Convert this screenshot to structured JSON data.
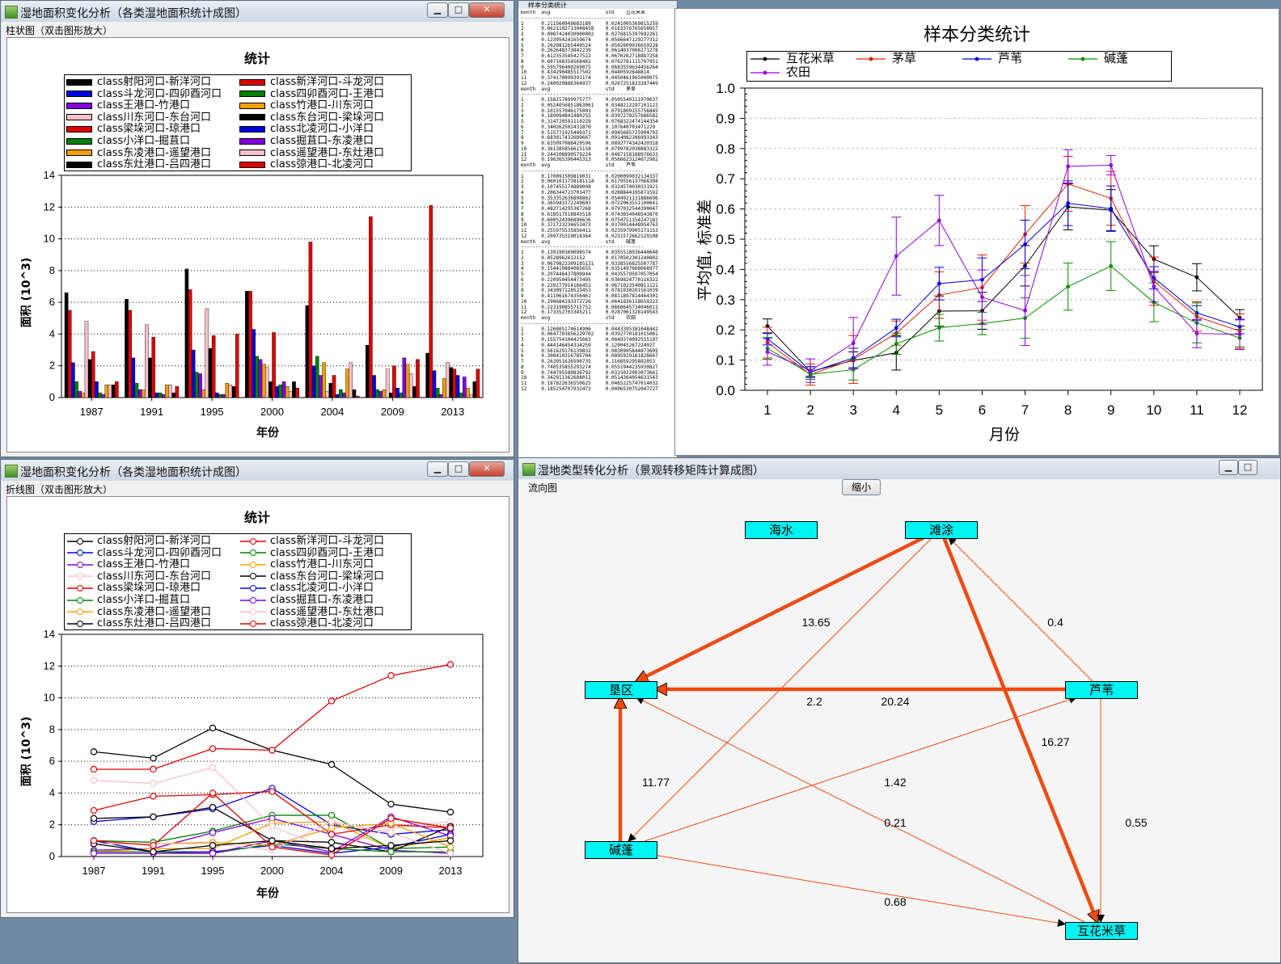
{
  "window_top_left": {
    "title": "湿地面积变化分析（各类湿地面积统计成图）",
    "menu": "柱状图（双击图形放大）",
    "chart_title": "统计",
    "controls": {
      "minimize": "▁",
      "maximize": "□",
      "close": "✕"
    }
  },
  "window_bottom_left": {
    "title": "湿地面积变化分析（各类湿地面积统计成图）",
    "menu": "折线图（双击图形放大）",
    "chart_title": "统计",
    "controls": {
      "minimize": "▁",
      "maximize": "□",
      "close": "✕"
    }
  },
  "text_window": {
    "title": "样本分类统计",
    "lines": [
      "month  avg                   std    互花米草",
      "------------------------------------------",
      "1      0.211560949683189     0.0241005369815259",
      "2      0.0621102713048458    0.0163376765658957",
      "3      0.0987424030900002    0.0276815397692261",
      "4      0.123954241659674     0.0566647129277312",
      "5      0.262081265449524     0.0502609036659228",
      "6      0.262648373842239     0.0614037006271278",
      "7      0.412353545427522     0.0670262718887258",
      "8      0.607108354568481     0.0762781115707951",
      "9      0.595796400269075     0.0683559634456264",
      "10     0.434290485517502     0.0440592648814",
      "11     0.374170899391174     0.0450461965000075",
      "12     0.240029886364937     0.0267251823287449",
      "month  avg                   std    茅草",
      "------------------------------------------",
      "1      0.158157899975777     0.0505549111970637",
      "2      0.0524056851863061    0.0348212297101122",
      "3      0.101557046175003     0.0791809155756845",
      "4      0.189094841480255     0.0397278257686582",
      "5      0.314720591110229     0.0768322474144354",
      "6      0.340262502431870     0.107640703471229",
      "7      0.515771925449371     0.0945685725904793",
      "8      0.683017432689667     0.0914082306993343",
      "9      0.635097086429596     0.0892774342420318",
      "10     0.361385856615158     0.0799782038883322",
      "11     0.244108890579224     0.0487158188976633",
      "12     0.196365396445313     0.0566623124672982",
      "month  avg                   std    芦苇",
      "------------------------------------------",
      "1      0.170091509819031     0.0200099032134337",
      "2      0.0601011738181114    0.0179556137068308",
      "3      0.107455174889008     0.0324574030331921",
      "4      0.206344723701477     0.0288844195871592",
      "5      0.353352636898862     0.0544921131886696",
      "6      0.365943372249603     0.0722063551100641",
      "7      0.482714295387268     0.0797032544390047",
      "8      0.618517518843518     0.0743654948543870",
      "9      0.600524396896636     0.0754751154247181",
      "10     0.371723234653473     0.0370014448954763",
      "11     0.255975535856411     0.0235979905171153",
      "12     0.209735319018364     0.0231572662129108",
      "month  avg                   std    碱蓬",
      "------------------------------------------",
      "1      0.139190360098574     0.0355518936440648",
      "2      0.0528962612152       0.0170502301240802",
      "3      0.0679823309185131    0.0338556825507787",
      "4      0.154419884085655     0.0351497668068977",
      "5      0.207446437809944     0.0435579507057054",
      "6      0.220950454473495     0.0369824770116322",
      "7      0.239277914166451     0.0671023540811121",
      "8      0.343097128523453     0.0781930201561039",
      "9      0.411061674356461     0.0811897814464301",
      "10     0.290684193372726     0.0641836118659223",
      "11     0.223190855715752     0.0660645734046011",
      "12     0.173352703345211     0.0287061328149543",
      "month  avg                   std    农田",
      "------------------------------------------",
      "1      0.126805174614906     0.0443395381048442",
      "2      0.0647703856229702    0.0392770181015081",
      "3      0.155754104425663     0.0849374092555197",
      "4      0.444146454334259     0.129045267224927",
      "5      0.561629176139832     0.0830905844873605",
      "6      0.308410316785704     0.0895929161828667",
      "7      0.263951626590735     0.116059295892053",
      "8      0.740535855293274     0.0551944235930827",
      "9      0.744795580836792     0.0315022003073661",
      "10     0.342911362688011     0.0514364054631543",
      "11     0.187822636550625     0.0465225747014032",
      "12     0.185254707932472     0.0496530752047727"
    ]
  },
  "window_bottom_right": {
    "title": "湿地类型转化分析（景观转移矩阵计算成图）",
    "menu": "流向图",
    "shrink_button": "缩小",
    "controls": {
      "minimize": "▁",
      "maximize": "□"
    }
  },
  "legend_items": [
    {
      "name": "class射阳河口-新洋河口",
      "color": "#000000"
    },
    {
      "name": "class新洋河口-斗龙河口",
      "color": "#e00000"
    },
    {
      "name": "class斗龙河口-四卯酉河口",
      "color": "#0000e0"
    },
    {
      "name": "class四卯酉河口-王港口",
      "color": "#008000"
    },
    {
      "name": "class王港口-竹港口",
      "color": "#8000e0"
    },
    {
      "name": "class竹港口-川东河口",
      "color": "#f0a000"
    },
    {
      "name": "class川东河口-东台河口",
      "color": "#f7c0c8"
    },
    {
      "name": "class东台河口-梁垛河口",
      "color": "#000000"
    },
    {
      "name": "class梁垛河口-琼港口",
      "color": "#e00000"
    },
    {
      "name": "class北凌河口-小洋口",
      "color": "#0000e0"
    },
    {
      "name": "class小洋口-掘苴口",
      "color": "#008000"
    },
    {
      "name": "class掘苴口-东凌港口",
      "color": "#8000e0"
    },
    {
      "name": "class东凌港口-遥望港口",
      "color": "#f0a000"
    },
    {
      "name": "class遥望港口-东灶港口",
      "color": "#f7c0c8"
    },
    {
      "name": "class东灶港口-吕四港口",
      "color": "#000000"
    },
    {
      "name": "class弶港口-北凌河口",
      "color": "#e00000"
    }
  ],
  "area_axes": {
    "xlabel": "年份",
    "ylabel": "面积 (10^3)",
    "ymax": 14,
    "yticks": [
      0,
      2,
      4,
      6,
      8,
      10,
      12,
      14
    ]
  },
  "chart_data": [
    {
      "type": "bar",
      "title": "统计",
      "xlabel": "年份",
      "ylabel": "面积 (10^3)",
      "ylim": [
        0,
        14
      ],
      "categories": [
        "1987",
        "1991",
        "1995",
        "2000",
        "2004",
        "2009",
        "2013"
      ],
      "series": [
        {
          "name": "class射阳河口-新洋河口",
          "values": [
            6.6,
            6.2,
            8.1,
            6.7,
            5.8,
            3.3,
            2.8
          ]
        },
        {
          "name": "class新洋河口-斗龙河口",
          "values": [
            5.5,
            5.5,
            6.8,
            6.7,
            9.8,
            11.4,
            12.1
          ]
        },
        {
          "name": "class斗龙河口-四卯酉河口",
          "values": [
            2.2,
            2.5,
            3.0,
            4.3,
            2.0,
            1.4,
            1.7
          ]
        },
        {
          "name": "class四卯酉河口-王港口",
          "values": [
            1.0,
            0.9,
            1.6,
            2.6,
            2.6,
            0.5,
            0.6
          ]
        },
        {
          "name": "class王港口-竹港口",
          "values": [
            0.4,
            0.5,
            1.5,
            2.4,
            1.4,
            0.4,
            0.2
          ]
        },
        {
          "name": "class竹港口-川东河口",
          "values": [
            0.3,
            0.5,
            0.5,
            2.1,
            2.2,
            0.5,
            1.2
          ]
        },
        {
          "name": "class川东河口-东台河口",
          "values": [
            4.8,
            4.6,
            5.6,
            1.9,
            0.4,
            1.8,
            2.2
          ]
        },
        {
          "name": "class东台河口-梁垛河口",
          "values": [
            2.4,
            2.5,
            3.1,
            1.0,
            0.9,
            0.3,
            1.9
          ]
        },
        {
          "name": "class梁垛河口-琼港口",
          "values": [
            2.9,
            3.8,
            3.9,
            4.1,
            1.4,
            2.0,
            1.8
          ]
        },
        {
          "name": "class北凌河口-小洋口",
          "values": [
            1.0,
            0.3,
            0.3,
            0.7,
            0.2,
            0.6,
            1.4
          ]
        },
        {
          "name": "class小洋口-掘苴口",
          "values": [
            0.3,
            0.3,
            0.2,
            0.8,
            0.5,
            0.3,
            0.3
          ]
        },
        {
          "name": "class掘苴口-东凌港口",
          "values": [
            0.2,
            0.2,
            0.2,
            1.0,
            0.3,
            2.5,
            1.3
          ]
        },
        {
          "name": "class东凌港口-遥望港口",
          "values": [
            0.8,
            0.8,
            0.9,
            0.7,
            1.8,
            2.1,
            0.6
          ]
        },
        {
          "name": "class遥望港口-东灶港口",
          "values": [
            0.8,
            0.8,
            0.8,
            0.4,
            2.2,
            1.5,
            0.2
          ]
        },
        {
          "name": "class东灶港口-吕四港口",
          "values": [
            0.8,
            0.3,
            0.7,
            1.0,
            0.5,
            0.7,
            1.0
          ]
        },
        {
          "name": "class弶港口-北凌河口",
          "values": [
            1.0,
            0.7,
            4.0,
            0.6,
            0.1,
            2.4,
            1.8
          ]
        }
      ]
    },
    {
      "type": "line",
      "title": "统计",
      "xlabel": "年份",
      "ylabel": "面积 (10^3)",
      "ylim": [
        0,
        14
      ],
      "x": [
        "1987",
        "1991",
        "1995",
        "2000",
        "2004",
        "2009",
        "2013"
      ],
      "series": [
        {
          "name": "class射阳河口-新洋河口",
          "values": [
            6.6,
            6.2,
            8.1,
            6.7,
            5.8,
            3.3,
            2.8
          ]
        },
        {
          "name": "class新洋河口-斗龙河口",
          "values": [
            5.5,
            5.5,
            6.8,
            6.7,
            9.8,
            11.4,
            12.1
          ]
        },
        {
          "name": "class斗龙河口-四卯酉河口",
          "values": [
            2.2,
            2.5,
            3.0,
            4.3,
            2.0,
            1.4,
            1.7
          ]
        },
        {
          "name": "class四卯酉河口-王港口",
          "values": [
            1.0,
            0.9,
            1.6,
            2.6,
            2.6,
            0.5,
            0.6
          ]
        },
        {
          "name": "class王港口-竹港口",
          "values": [
            0.4,
            0.5,
            1.5,
            2.4,
            1.4,
            0.4,
            0.2
          ]
        },
        {
          "name": "class竹港口-川东河口",
          "values": [
            0.3,
            0.5,
            0.5,
            2.1,
            2.2,
            0.5,
            1.2
          ]
        },
        {
          "name": "class川东河口-东台河口",
          "values": [
            4.8,
            4.6,
            5.6,
            1.9,
            0.4,
            1.8,
            2.2
          ]
        },
        {
          "name": "class东台河口-梁垛河口",
          "values": [
            2.4,
            2.5,
            3.1,
            1.0,
            0.9,
            0.3,
            1.9
          ]
        },
        {
          "name": "class梁垛河口-琼港口",
          "values": [
            2.9,
            3.8,
            3.9,
            4.1,
            1.4,
            2.0,
            1.8
          ]
        },
        {
          "name": "class北凌河口-小洋口",
          "values": [
            1.0,
            0.3,
            0.3,
            0.7,
            0.2,
            0.6,
            1.4
          ]
        },
        {
          "name": "class小洋口-掘苴口",
          "values": [
            0.3,
            0.3,
            0.2,
            0.8,
            0.5,
            0.3,
            0.3
          ]
        },
        {
          "name": "class掘苴口-东凌港口",
          "values": [
            0.2,
            0.2,
            0.2,
            1.0,
            0.3,
            2.5,
            1.3
          ]
        },
        {
          "name": "class东凌港口-遥望港口",
          "values": [
            0.8,
            0.8,
            0.9,
            0.7,
            1.8,
            2.1,
            0.6
          ]
        },
        {
          "name": "class遥望港口-东灶港口",
          "values": [
            0.8,
            0.8,
            0.8,
            0.4,
            2.2,
            1.5,
            0.2
          ]
        },
        {
          "name": "class东灶港口-吕四港口",
          "values": [
            0.8,
            0.3,
            0.7,
            1.0,
            0.5,
            0.7,
            1.0
          ]
        },
        {
          "name": "class弶港口-北凌河口",
          "values": [
            1.0,
            0.7,
            4.0,
            0.6,
            0.1,
            2.4,
            1.8
          ]
        }
      ]
    },
    {
      "type": "line",
      "title": "样本分类统计",
      "xlabel": "月份",
      "ylabel": "平均值, 标准差",
      "ylim": [
        0,
        1.0
      ],
      "yticks": [
        "0.0",
        "0.1",
        "0.2",
        "0.3",
        "0.4",
        "0.5",
        "0.6",
        "0.7",
        "0.8",
        "0.9",
        "1.0"
      ],
      "x": [
        1,
        2,
        3,
        4,
        5,
        6,
        7,
        8,
        9,
        10,
        11,
        12
      ],
      "series": [
        {
          "name": "互花米草",
          "color": "#000000",
          "values": [
            0.212,
            0.062,
            0.099,
            0.124,
            0.262,
            0.263,
            0.412,
            0.607,
            0.596,
            0.434,
            0.374,
            0.24
          ],
          "std": [
            0.024,
            0.016,
            0.028,
            0.057,
            0.05,
            0.061,
            0.067,
            0.076,
            0.068,
            0.044,
            0.045,
            0.027
          ]
        },
        {
          "name": "茅草",
          "color": "#e02000",
          "values": [
            0.158,
            0.052,
            0.102,
            0.189,
            0.315,
            0.34,
            0.516,
            0.683,
            0.635,
            0.361,
            0.244,
            0.196
          ],
          "std": [
            0.051,
            0.035,
            0.079,
            0.04,
            0.077,
            0.108,
            0.095,
            0.091,
            0.089,
            0.08,
            0.049,
            0.057
          ]
        },
        {
          "name": "芦苇",
          "color": "#0000e0",
          "values": [
            0.17,
            0.06,
            0.107,
            0.206,
            0.353,
            0.366,
            0.483,
            0.619,
            0.601,
            0.372,
            0.256,
            0.21
          ],
          "std": [
            0.02,
            0.018,
            0.032,
            0.029,
            0.054,
            0.072,
            0.08,
            0.074,
            0.075,
            0.037,
            0.024,
            0.023
          ]
        },
        {
          "name": "碱蓬",
          "color": "#009000",
          "values": [
            0.139,
            0.053,
            0.068,
            0.154,
            0.207,
            0.221,
            0.239,
            0.343,
            0.411,
            0.291,
            0.223,
            0.173
          ],
          "std": [
            0.036,
            0.017,
            0.034,
            0.035,
            0.044,
            0.037,
            0.067,
            0.078,
            0.081,
            0.064,
            0.066,
            0.029
          ]
        },
        {
          "name": "农田",
          "color": "#9000e0",
          "values": [
            0.127,
            0.065,
            0.156,
            0.444,
            0.562,
            0.308,
            0.264,
            0.741,
            0.745,
            0.343,
            0.188,
            0.185
          ],
          "std": [
            0.044,
            0.039,
            0.085,
            0.129,
            0.083,
            0.09,
            0.116,
            0.055,
            0.032,
            0.051,
            0.047,
            0.05
          ]
        }
      ]
    }
  ],
  "flow_nodes": [
    {
      "id": "sea",
      "label": "海水"
    },
    {
      "id": "tidal",
      "label": "滩涂"
    },
    {
      "id": "reclaim",
      "label": "垦区"
    },
    {
      "id": "reed",
      "label": "芦苇"
    },
    {
      "id": "suaeda",
      "label": "碱蓬"
    },
    {
      "id": "spartina",
      "label": "互花米草"
    }
  ],
  "flow_edges": [
    {
      "from": "tidal",
      "to": "reclaim",
      "label": "13.65",
      "weight": 13.65
    },
    {
      "from": "reed",
      "to": "tidal",
      "label": "0.4",
      "weight": 0.4
    },
    {
      "from": "reed",
      "to": "reclaim",
      "label": "20.24",
      "weight": 20.24
    },
    {
      "from": "tidal",
      "to": "suaeda",
      "label": "2.2",
      "weight": 2.2
    },
    {
      "from": "tidal",
      "to": "spartina",
      "label": "16.27",
      "weight": 16.27
    },
    {
      "from": "suaeda",
      "to": "reclaim",
      "label": "11.77",
      "weight": 11.77
    },
    {
      "from": "suaeda",
      "to": "reed",
      "label": "1.42",
      "weight": 1.42
    },
    {
      "from": "spartina",
      "to": "reclaim",
      "label": "0.21",
      "weight": 0.21
    },
    {
      "from": "reed",
      "to": "spartina",
      "label": "0.55",
      "weight": 0.55
    },
    {
      "from": "suaeda",
      "to": "spartina",
      "label": "0.68",
      "weight": 0.68
    }
  ]
}
